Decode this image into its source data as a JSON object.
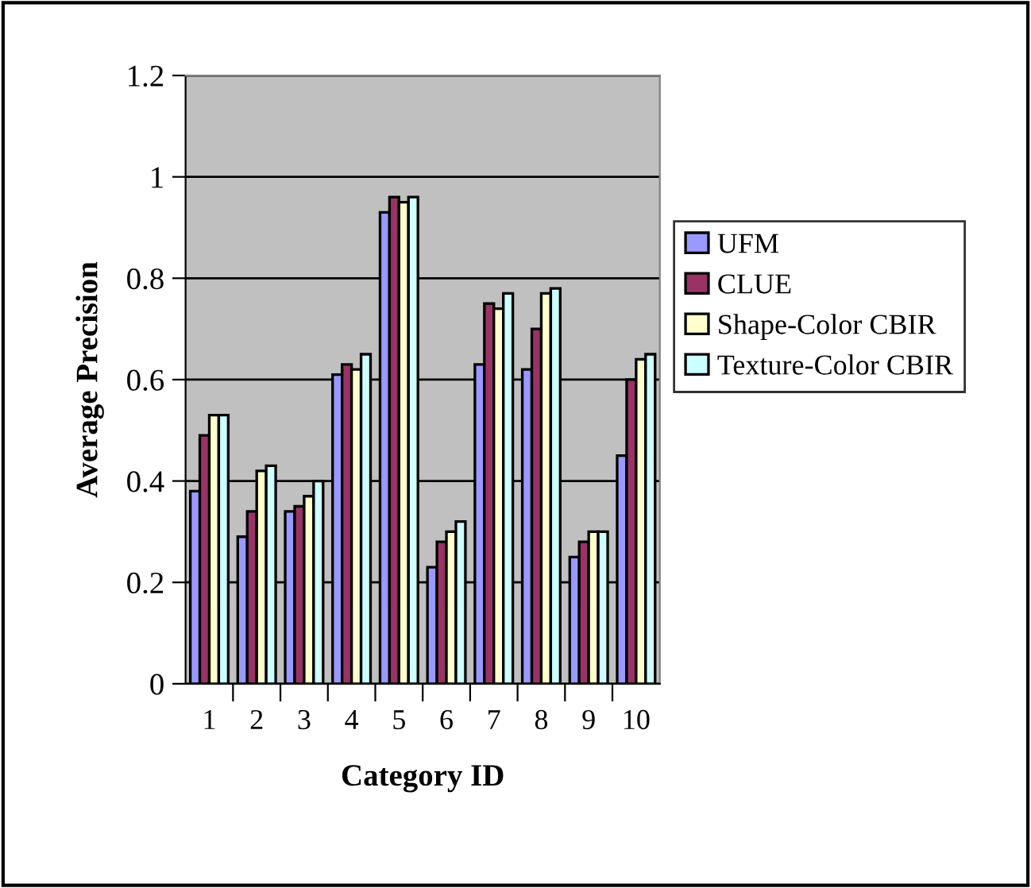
{
  "chart_data": {
    "type": "bar",
    "xlabel": "Category ID",
    "ylabel": "Average Precision",
    "categories": [
      "1",
      "2",
      "3",
      "4",
      "5",
      "6",
      "7",
      "8",
      "9",
      "10"
    ],
    "series": [
      {
        "name": "UFM",
        "color": "#9999ff",
        "values": [
          0.38,
          0.29,
          0.34,
          0.61,
          0.93,
          0.23,
          0.63,
          0.62,
          0.25,
          0.45
        ]
      },
      {
        "name": "CLUE",
        "color": "#993366",
        "values": [
          0.49,
          0.34,
          0.35,
          0.63,
          0.96,
          0.28,
          0.75,
          0.7,
          0.28,
          0.6
        ]
      },
      {
        "name": "Shape-Color CBIR",
        "color": "#ffffcc",
        "values": [
          0.53,
          0.42,
          0.37,
          0.62,
          0.95,
          0.3,
          0.74,
          0.77,
          0.3,
          0.64
        ]
      },
      {
        "name": "Texture-Color CBIR",
        "color": "#ccffff",
        "values": [
          0.53,
          0.43,
          0.4,
          0.65,
          0.96,
          0.32,
          0.77,
          0.78,
          0.3,
          0.65
        ]
      }
    ],
    "ylim": [
      0,
      1.2
    ],
    "yticks": [
      0,
      0.2,
      0.4,
      0.6,
      0.8,
      {
        "value": 1,
        "label": "1"
      },
      1.2
    ],
    "grid": "y",
    "legend": "right"
  }
}
